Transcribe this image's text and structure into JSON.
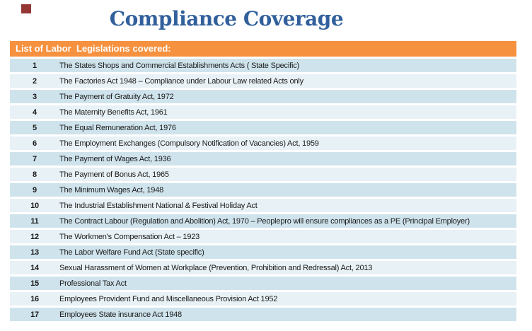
{
  "page": {
    "title": "Compliance Coverage"
  },
  "colors": {
    "marker": "#943634",
    "title": "#31609C",
    "header_bg": "#F6913F",
    "header_text": "#FFFFFF",
    "row_odd_bg": "#CFE3EC",
    "row_even_bg": "#E8F1F5",
    "row_text": "#1A1A1A"
  },
  "table": {
    "header": "List of Labor  Legislations covered:",
    "rows": [
      {
        "num": "1",
        "text": "The States Shops and Commercial Establishments Acts ( State Specific)"
      },
      {
        "num": "2",
        "text": "The Factories Act 1948 – Compliance under Labour Law related Acts only"
      },
      {
        "num": "3",
        "text": "The Payment of Gratuity Act, 1972"
      },
      {
        "num": "4",
        "text": "The Maternity Benefits Act, 1961"
      },
      {
        "num": "5",
        "text": "The Equal Remuneration Act, 1976"
      },
      {
        "num": "6",
        "text": "The Employment Exchanges (Compulsory Notification of Vacancies) Act, 1959"
      },
      {
        "num": "7",
        "text": "The Payment of Wages Act, 1936"
      },
      {
        "num": "8",
        "text": "The Payment of Bonus Act, 1965"
      },
      {
        "num": "9",
        "text": "The Minimum Wages Act, 1948"
      },
      {
        "num": "10",
        "text": "The Industrial Establishment National & Festival Holiday Act"
      },
      {
        "num": "11",
        "text": "The Contract Labour (Regulation and Abolition) Act, 1970 – Peoplepro will ensure compliances as a PE (Principal Employer)"
      },
      {
        "num": "12",
        "text": "The Workmen's Compensation Act – 1923"
      },
      {
        "num": "13",
        "text": "The Labor Welfare Fund Act (State specific)"
      },
      {
        "num": "14",
        "text": "Sexual Harassment of Women at Workplace (Prevention, Prohibition and Redressal) Act, 2013"
      },
      {
        "num": "15",
        "text": "Professional Tax Act"
      },
      {
        "num": "16",
        "text": "Employees Provident Fund and Miscellaneous Provision Act 1952"
      },
      {
        "num": "17",
        "text": "Employees State insurance Act 1948"
      }
    ]
  }
}
